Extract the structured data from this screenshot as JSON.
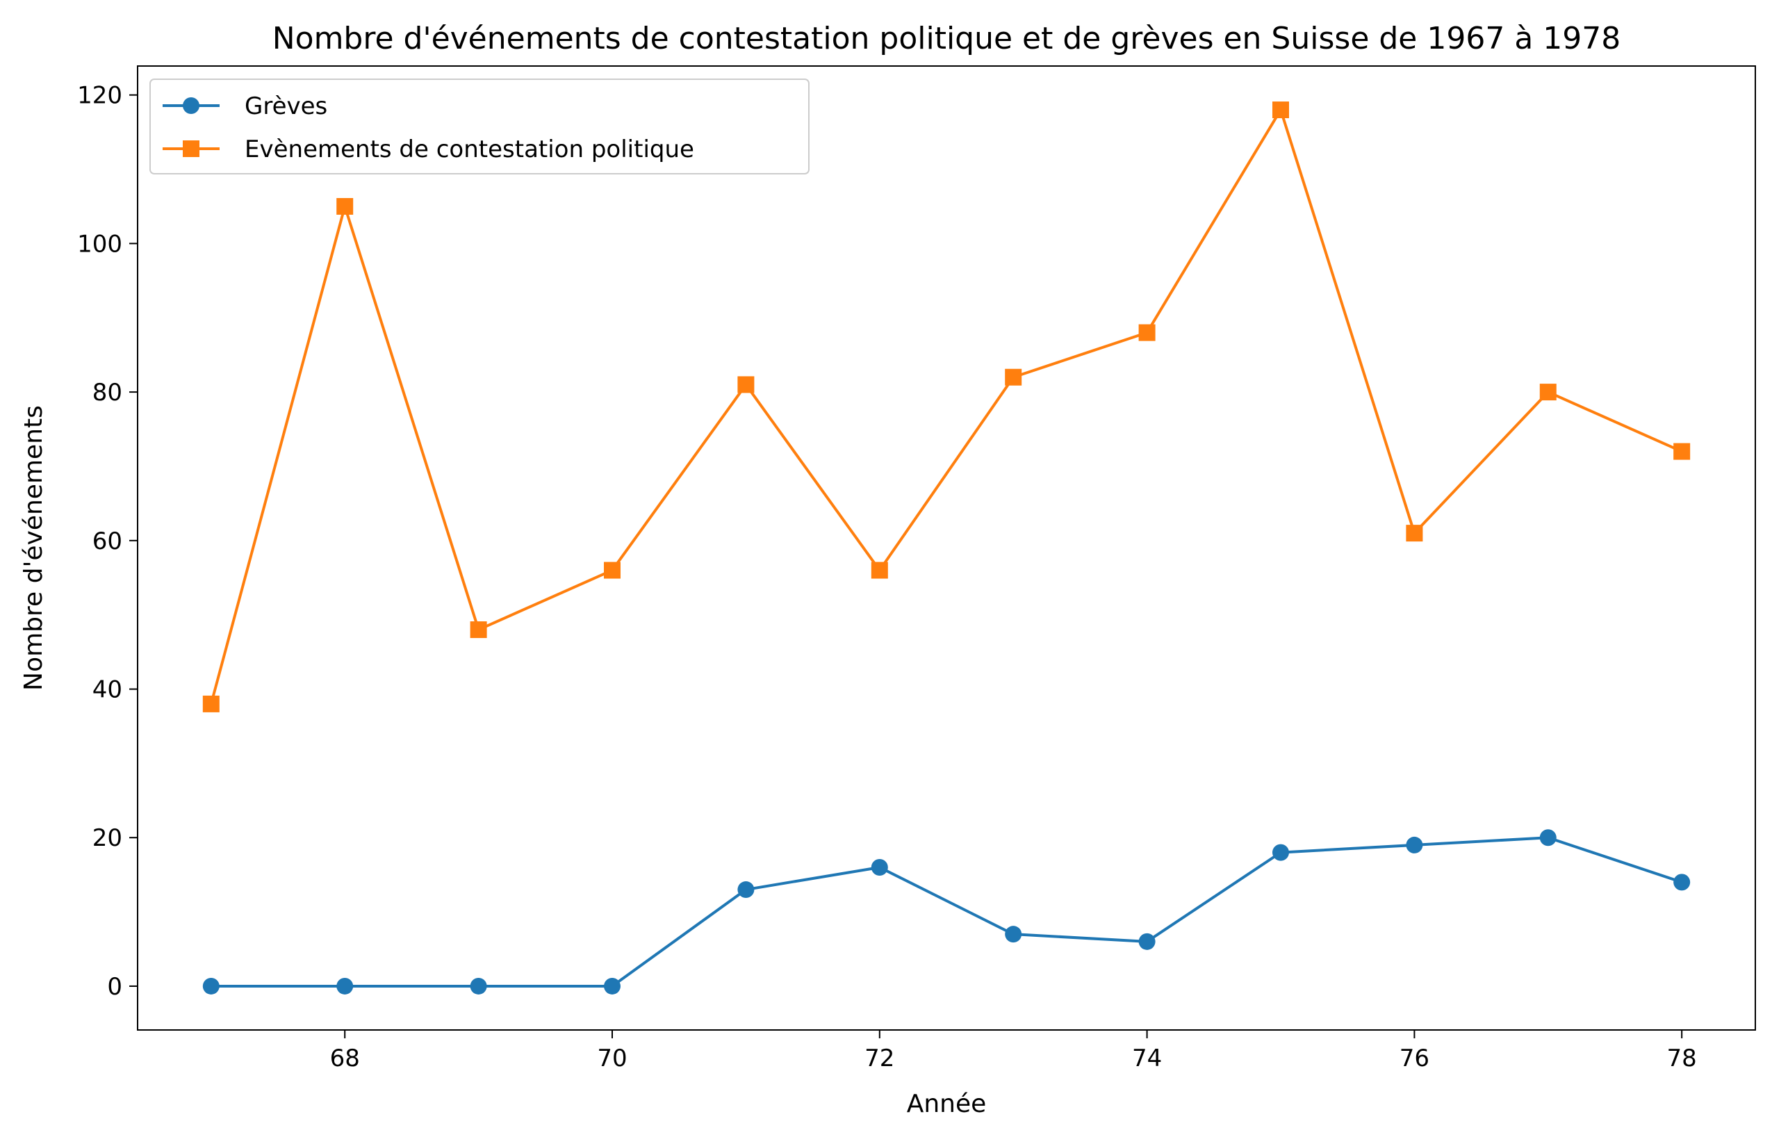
{
  "chart_data": {
    "type": "line",
    "title": "Nombre d'événements de contestation politique et de grèves en Suisse de 1967 à 1978",
    "xlabel": "Année",
    "ylabel": "Nombre d'événements",
    "x": [
      67,
      68,
      69,
      70,
      71,
      72,
      73,
      74,
      75,
      76,
      77,
      78
    ],
    "xlim": [
      66.45,
      78.55
    ],
    "ylim": [
      -5.9,
      123.9
    ],
    "xticks": [
      68,
      70,
      72,
      74,
      76,
      78
    ],
    "yticks": [
      0,
      20,
      40,
      60,
      80,
      100,
      120
    ],
    "grid": false,
    "legend_position": "upper-left",
    "series": [
      {
        "name": "Grèves",
        "marker": "circle",
        "color": "#1f77b4",
        "values": [
          0,
          0,
          0,
          0,
          13,
          16,
          7,
          6,
          18,
          19,
          20,
          14
        ]
      },
      {
        "name": "Evènements de contestation politique",
        "marker": "square",
        "color": "#ff7f0e",
        "values": [
          38,
          105,
          48,
          56,
          81,
          56,
          82,
          88,
          118,
          61,
          80,
          72
        ]
      }
    ]
  }
}
